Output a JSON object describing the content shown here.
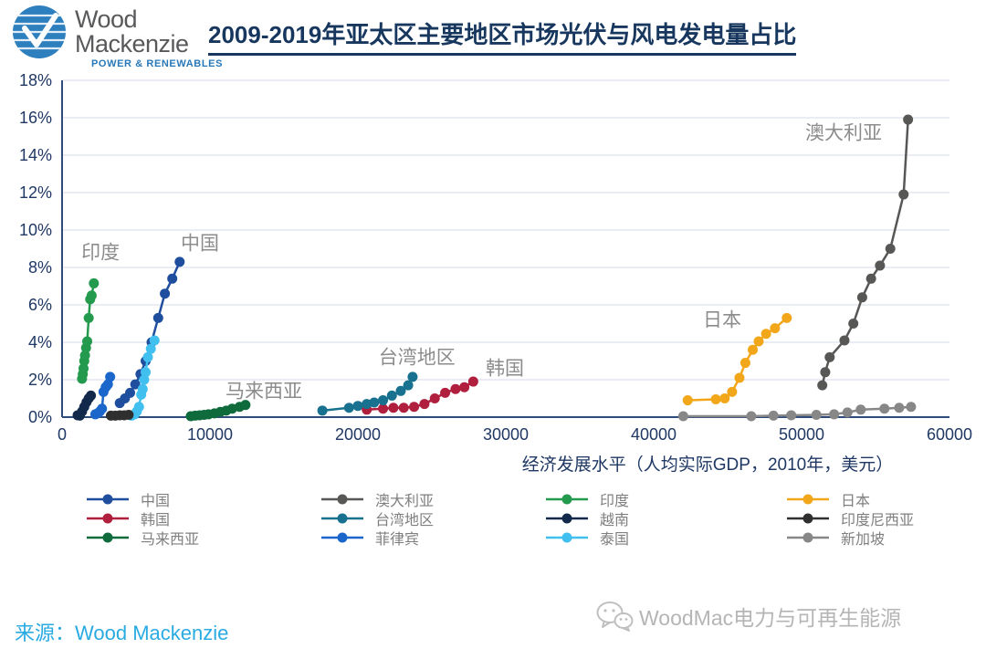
{
  "header": {
    "logo": {
      "line1": "Wood",
      "line2": "Mackenzie",
      "tagline": "POWER & RENEWABLES"
    },
    "title": "2009-2019年亚太区主要地区市场光伏与风电发电量占比"
  },
  "chart_data": {
    "type": "line",
    "title": "2009-2019年亚太区主要地区市场光伏与风电发电量占比",
    "xlabel": "经济发展水平（人均实际GDP，2010年，美元）",
    "ylabel": "",
    "xlim": [
      0,
      60000
    ],
    "ylim": [
      0,
      18
    ],
    "xticks": [
      0,
      10000,
      20000,
      30000,
      40000,
      50000,
      60000
    ],
    "ytick_step": 2,
    "ytick_suffix": "%",
    "grid": true,
    "legend_position": "bottom",
    "axis_color": "#2E4B7C",
    "grid_color": "#D6DBE7",
    "tick_color": "#1F3864",
    "annotation_color": "#8C8C8C",
    "series": [
      {
        "name": "中国",
        "color": "#1F4E9F",
        "points": [
          [
            3900,
            0.75
          ],
          [
            4250,
            1.0
          ],
          [
            4600,
            1.3
          ],
          [
            4950,
            1.75
          ],
          [
            5300,
            2.3
          ],
          [
            5650,
            3.0
          ],
          [
            6050,
            4.0
          ],
          [
            6500,
            5.3
          ],
          [
            6950,
            6.6
          ],
          [
            7450,
            7.4
          ],
          [
            7950,
            8.3
          ]
        ]
      },
      {
        "name": "韩国",
        "color": "#B01F3D",
        "points": [
          [
            20600,
            0.4
          ],
          [
            21700,
            0.45
          ],
          [
            22400,
            0.5
          ],
          [
            23100,
            0.5
          ],
          [
            23800,
            0.55
          ],
          [
            24500,
            0.7
          ],
          [
            25200,
            1.0
          ],
          [
            25900,
            1.3
          ],
          [
            26600,
            1.5
          ],
          [
            27200,
            1.6
          ],
          [
            27800,
            1.9
          ]
        ]
      },
      {
        "name": "马来西亚",
        "color": "#0F6B3C",
        "points": [
          [
            8700,
            0.05
          ],
          [
            9000,
            0.08
          ],
          [
            9300,
            0.1
          ],
          [
            9600,
            0.12
          ],
          [
            9900,
            0.15
          ],
          [
            10300,
            0.2
          ],
          [
            10700,
            0.28
          ],
          [
            11100,
            0.35
          ],
          [
            11500,
            0.45
          ],
          [
            12000,
            0.55
          ],
          [
            12400,
            0.65
          ]
        ]
      },
      {
        "name": "澳大利亚",
        "color": "#575756",
        "points": [
          [
            51400,
            1.7
          ],
          [
            51600,
            2.4
          ],
          [
            51900,
            3.2
          ],
          [
            52900,
            4.1
          ],
          [
            53500,
            5.0
          ],
          [
            54100,
            6.4
          ],
          [
            54700,
            7.4
          ],
          [
            55300,
            8.1
          ],
          [
            56000,
            9.0
          ],
          [
            56900,
            11.9
          ],
          [
            57200,
            15.9
          ]
        ]
      },
      {
        "name": "台湾地区",
        "color": "#17718F",
        "points": [
          [
            17600,
            0.35
          ],
          [
            19400,
            0.5
          ],
          [
            20000,
            0.6
          ],
          [
            20600,
            0.7
          ],
          [
            21100,
            0.78
          ],
          [
            21700,
            0.9
          ],
          [
            22300,
            1.15
          ],
          [
            22900,
            1.4
          ],
          [
            23400,
            1.7
          ],
          [
            23700,
            2.15
          ]
        ]
      },
      {
        "name": "菲律宾",
        "color": "#1A66CB",
        "points": [
          [
            2250,
            0.15
          ],
          [
            2400,
            0.2
          ],
          [
            2550,
            0.3
          ],
          [
            2700,
            0.45
          ],
          [
            2800,
            1.35
          ],
          [
            2950,
            1.6
          ],
          [
            3100,
            1.75
          ],
          [
            3250,
            2.15
          ]
        ]
      },
      {
        "name": "印度",
        "color": "#239A4D",
        "points": [
          [
            1350,
            2.05
          ],
          [
            1400,
            2.3
          ],
          [
            1450,
            2.6
          ],
          [
            1500,
            3.0
          ],
          [
            1550,
            3.3
          ],
          [
            1620,
            3.7
          ],
          [
            1700,
            4.05
          ],
          [
            1800,
            5.3
          ],
          [
            1900,
            6.3
          ],
          [
            2000,
            6.5
          ],
          [
            2150,
            7.15
          ]
        ]
      },
      {
        "name": "越南",
        "color": "#13294B",
        "points": [
          [
            1050,
            0.1
          ],
          [
            1200,
            0.08
          ],
          [
            1350,
            0.3
          ],
          [
            1500,
            0.55
          ],
          [
            1650,
            0.8
          ],
          [
            1800,
            1.0
          ],
          [
            1950,
            1.15
          ]
        ]
      },
      {
        "name": "泰国",
        "color": "#41C0F0",
        "points": [
          [
            4700,
            0.08
          ],
          [
            4900,
            0.15
          ],
          [
            5050,
            0.3
          ],
          [
            5200,
            0.55
          ],
          [
            5350,
            1.2
          ],
          [
            5450,
            1.5
          ],
          [
            5550,
            2.0
          ],
          [
            5650,
            2.4
          ],
          [
            5800,
            3.2
          ],
          [
            6000,
            3.65
          ],
          [
            6250,
            4.1
          ]
        ]
      },
      {
        "name": "日本",
        "color": "#F2A71B",
        "points": [
          [
            42300,
            0.9
          ],
          [
            44200,
            0.95
          ],
          [
            44800,
            1.0
          ],
          [
            45300,
            1.35
          ],
          [
            45800,
            2.1
          ],
          [
            46200,
            2.9
          ],
          [
            46700,
            3.6
          ],
          [
            47100,
            4.05
          ],
          [
            47600,
            4.45
          ],
          [
            48200,
            4.75
          ],
          [
            49000,
            5.3
          ]
        ]
      },
      {
        "name": "印度尼西亚",
        "color": "#2F2F2F",
        "points": [
          [
            3300,
            0.08
          ],
          [
            3600,
            0.08
          ],
          [
            3900,
            0.1
          ],
          [
            4200,
            0.1
          ],
          [
            4500,
            0.12
          ]
        ]
      },
      {
        "name": "新加坡",
        "color": "#878787",
        "points": [
          [
            42000,
            0.05
          ],
          [
            46600,
            0.05
          ],
          [
            48100,
            0.08
          ],
          [
            49300,
            0.1
          ],
          [
            51000,
            0.12
          ],
          [
            52200,
            0.15
          ],
          [
            53100,
            0.25
          ],
          [
            54000,
            0.4
          ],
          [
            55600,
            0.45
          ],
          [
            56600,
            0.5
          ],
          [
            57400,
            0.55
          ]
        ]
      }
    ],
    "annotations": [
      {
        "text": "印度",
        "x": 2600,
        "y": 8.8
      },
      {
        "text": "中国",
        "x": 9320,
        "y": 9.3
      },
      {
        "text": "马来西亚",
        "x": 13640,
        "y": 1.4
      },
      {
        "text": "台湾地区",
        "x": 24000,
        "y": 3.2
      },
      {
        "text": "韩国",
        "x": 29940,
        "y": 2.6
      },
      {
        "text": "日本",
        "x": 44630,
        "y": 5.2
      },
      {
        "text": "澳大利亚",
        "x": 52840,
        "y": 15.2
      }
    ]
  },
  "legend": {
    "text_color": "#7F7F7F",
    "columns": [
      [
        {
          "label": "中国",
          "color": "#1F4E9F"
        },
        {
          "label": "韩国",
          "color": "#B01F3D"
        },
        {
          "label": "马来西亚",
          "color": "#0F6B3C"
        }
      ],
      [
        {
          "label": "澳大利亚",
          "color": "#575756"
        },
        {
          "label": "台湾地区",
          "color": "#17718F"
        },
        {
          "label": "菲律宾",
          "color": "#1A66CB"
        }
      ],
      [
        {
          "label": "印度",
          "color": "#239A4D"
        },
        {
          "label": "越南",
          "color": "#13294B"
        },
        {
          "label": "泰国",
          "color": "#41C0F0"
        }
      ],
      [
        {
          "label": "日本",
          "color": "#F2A71B"
        },
        {
          "label": "印度尼西亚",
          "color": "#2F2F2F"
        },
        {
          "label": "新加坡",
          "color": "#878787"
        }
      ]
    ]
  },
  "footer": {
    "source_label": "来源：",
    "source_name": "Wood Mackenzie",
    "watermark": "WoodMac电力与可再生能源"
  }
}
